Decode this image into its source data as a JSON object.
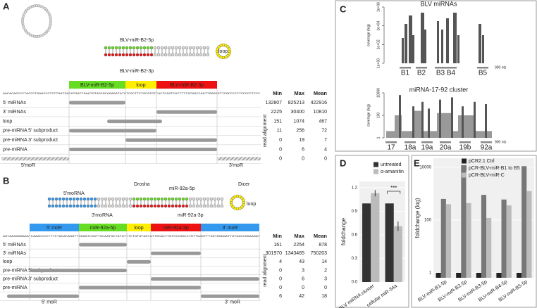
{
  "panel_a": {
    "letter": "A",
    "structure_labels": [
      "BLV-miR-B2-5p",
      "BLV-miR-B2-3p",
      "loop"
    ],
    "segments": [
      {
        "label": "BLV-miR-B2-5p",
        "color": "#66dd22"
      },
      {
        "label": "loop",
        "color": "#ffee00"
      },
      {
        "label": "BLV-miR-B2-3p",
        "color": "#ee1111"
      }
    ],
    "sequence": "AACACAGCCCTACCCTGAGCCCTCCTGATGACATGACTGAATGTAGCGCAGAGATATGTCGCTTCTGCGTGTCACTCAGTCATTTTTATAGCCGATTGGGGGTTCGCCCCCTCCCCCTCCC",
    "columns": [
      "Min",
      "Max",
      "Mean"
    ],
    "side_label": "read alignment",
    "rows": [
      [
        "5' miRNAs",
        132807,
        825213,
        422916
      ],
      [
        "3' miRNAs",
        2225,
        30400,
        10810
      ],
      [
        "loop",
        151,
        1074,
        467
      ],
      [
        "pre-miRNA 5' subproduct",
        11,
        256,
        72
      ],
      [
        "pre-miRNA 3' subproduct",
        0,
        19,
        7
      ],
      [
        "pre-miRNA",
        0,
        6,
        4
      ],
      [
        null,
        0,
        0,
        0
      ]
    ],
    "end_labels": [
      "5'moR",
      "3'moR"
    ]
  },
  "panel_b": {
    "letter": "B",
    "structure_labels": [
      "5'moRNA",
      "Drosha",
      "miR-92a-5p",
      "Dicer",
      "miR-92a-3p",
      "3'moRNA",
      "loop"
    ],
    "segments": [
      {
        "label": "5' moR",
        "color": "#3399ee"
      },
      {
        "label": "miR-92a-5p",
        "color": "#66dd22"
      },
      {
        "label": "loop",
        "color": "#ffee00"
      },
      {
        "label": "miR-92a-3p",
        "color": "#ee1111"
      },
      {
        "label": "3' moR",
        "color": "#3399ee"
      }
    ],
    "sequence": "AGTAAGGGAAAATCAAACCCCTTTCTACACAGGTTGGGATCGGTTGCAATGCTGTGTTTCTGTATGGTATTGCACTTGTCCCGGCCTGTTGAGTTTGGTGGGGATTGTGACCAGAAGAT",
    "columns": [
      "Min",
      "Max",
      "Mean"
    ],
    "side_label": "read alignment",
    "rows": [
      [
        "5' miRNAs",
        161,
        2254,
        878
      ],
      [
        "3' miRNAs",
        301970,
        1343465,
        750203
      ],
      [
        "loop",
        4,
        43,
        14
      ],
      [
        "pre-miRNA 5' subproduct",
        0,
        3,
        2
      ],
      [
        "pre-miRNA 3' subproduct",
        0,
        6,
        3
      ],
      [
        "pre-miRNA",
        0,
        0,
        0
      ],
      [
        null,
        6,
        42,
        18
      ]
    ],
    "end_labels": [
      "5' moR",
      "3' moR"
    ]
  },
  "panel_c": {
    "letter": "C",
    "top": {
      "title": "BLV miRNAs",
      "ylabel": "coverage (log)",
      "yticks": [
        "1e+00",
        "1e+02",
        "1e+04",
        "1e+06"
      ],
      "labels": [
        "B1",
        "B2",
        "B3",
        "B4",
        "B5"
      ],
      "scale": "900 nts"
    },
    "bottom": {
      "title": "miRNA-17-92 cluster",
      "ylabel": "coverage (log)",
      "yticks": [
        1,
        100,
        10000
      ],
      "labels": [
        "17",
        "18a",
        "19a",
        "20a",
        "19b",
        "92a"
      ],
      "scale": "900 nts"
    }
  },
  "chart_data": [
    {
      "type": "bar",
      "label": "D",
      "ylabel": "foldchange",
      "categories": [
        "BLV miRNA cluster",
        "cellular miR-34a"
      ],
      "series": [
        {
          "name": "untreated",
          "color": "#333333",
          "values": [
            1.0,
            1.0
          ],
          "errors": [
            0.0,
            0.0
          ]
        },
        {
          "name": "α-amanitin",
          "color": "#bbbbbb",
          "values": [
            1.13,
            0.71
          ],
          "errors": [
            0.04,
            0.06
          ]
        }
      ],
      "ylim": [
        0,
        1.28
      ],
      "yticks": [
        {
          "value": 0,
          "label": "0.0"
        },
        0.3,
        0.6,
        0.9,
        1.2
      ],
      "annotation": "***",
      "log": false,
      "legend": "top"
    },
    {
      "type": "bar",
      "label": "E",
      "ylabel": "foldchange (log)",
      "categories": [
        "BLV-miR-B1-5p",
        "BLV-miR-B2-5p",
        "BLV-miR-B3-5p",
        "BLV-miR-B4-5p",
        "BLV-miR-B5-5p"
      ],
      "series": [
        {
          "name": "pCR2.1 Ctrl",
          "color": "#222222",
          "values": [
            1,
            1,
            1,
            1,
            1
          ]
        },
        {
          "name": "pCR-BLV-miR-B1 to B5",
          "color": "#777777",
          "values": [
            630,
            12000,
            900,
            600,
            11000
          ]
        },
        {
          "name": "pCR-BLV-miR-C",
          "color": "#bbbbbb",
          "values": [
            400,
            440,
            120,
            360,
            1250
          ]
        }
      ],
      "ylim": [
        0.65,
        22000
      ],
      "yticks": [
        1,
        100,
        10000
      ],
      "log": true,
      "legend": "top"
    }
  ]
}
